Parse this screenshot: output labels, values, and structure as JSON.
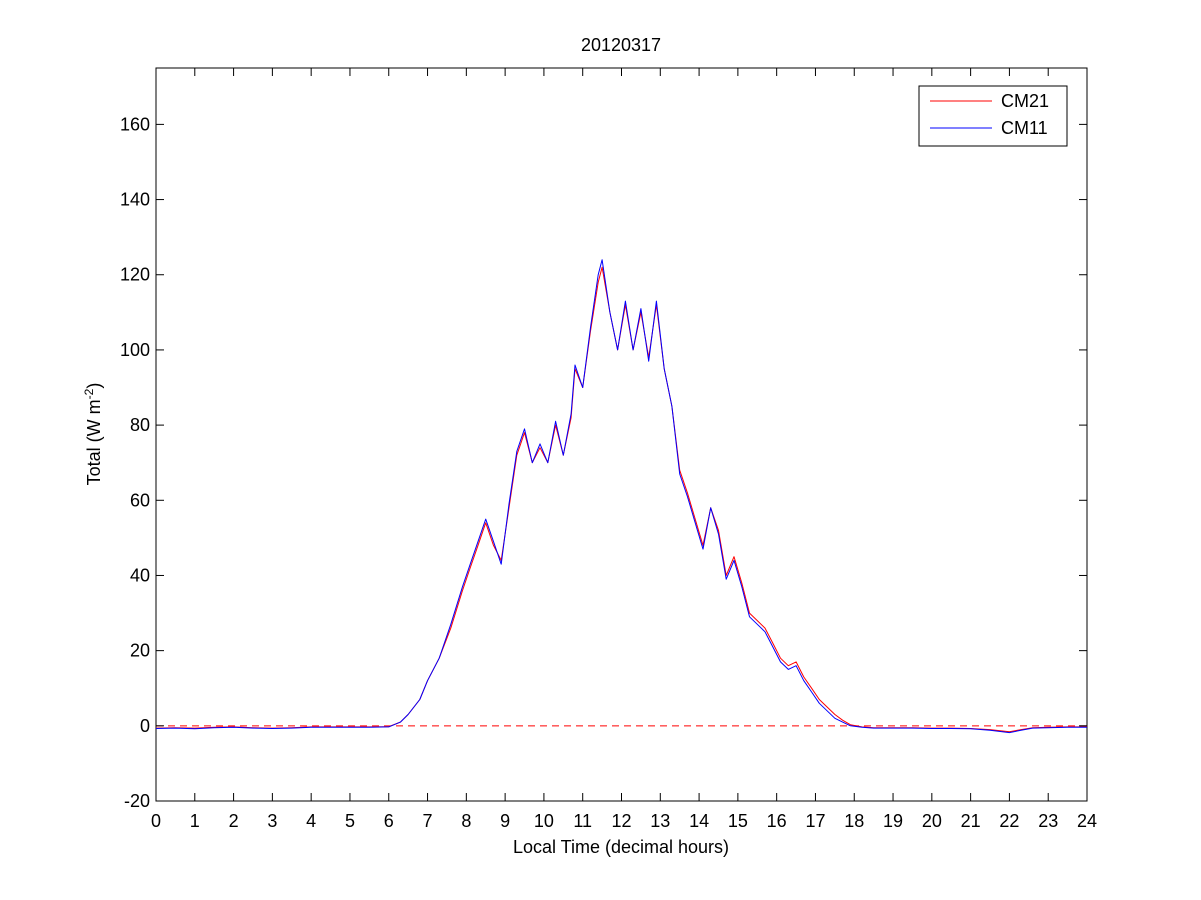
{
  "chart_data": {
    "type": "line",
    "title": "20120317",
    "xlabel": "Local Time (decimal hours)",
    "ylabel_main": "Total (W m",
    "ylabel_sup": "-2",
    "ylabel_close": ")",
    "xlim": [
      0,
      24
    ],
    "ylim": [
      -20,
      175
    ],
    "xticks": [
      0,
      1,
      2,
      3,
      4,
      5,
      6,
      7,
      8,
      9,
      10,
      11,
      12,
      13,
      14,
      15,
      16,
      17,
      18,
      19,
      20,
      21,
      22,
      23,
      24
    ],
    "xtick_labels": [
      "0",
      "1",
      "2",
      "3",
      "4",
      "5",
      "6",
      "7",
      "8",
      "9",
      "10",
      "11",
      "12",
      "13",
      "14",
      "15",
      "16",
      "17",
      "18",
      "19",
      "20",
      "21",
      "22",
      "23",
      "24"
    ],
    "yticks": [
      -20,
      0,
      20,
      40,
      60,
      80,
      100,
      120,
      140,
      160
    ],
    "ytick_labels": [
      "-20",
      "0",
      "20",
      "40",
      "60",
      "80",
      "100",
      "120",
      "140",
      "160"
    ],
    "grid": false,
    "legend_position": "top-right",
    "reference_line": {
      "y": 0,
      "style": "dashed",
      "color": "#ff0000"
    },
    "series": [
      {
        "name": "CM21",
        "color": "#ff0000",
        "x": [
          0,
          0.5,
          1,
          1.5,
          2,
          2.5,
          3,
          3.5,
          4,
          4.5,
          5,
          5.5,
          6,
          6.3,
          6.5,
          6.8,
          7,
          7.3,
          7.6,
          7.9,
          8.1,
          8.3,
          8.5,
          8.7,
          8.9,
          9.1,
          9.3,
          9.5,
          9.7,
          9.9,
          10.1,
          10.3,
          10.5,
          10.7,
          10.8,
          11,
          11.2,
          11.4,
          11.5,
          11.7,
          11.9,
          12.1,
          12.3,
          12.5,
          12.7,
          12.9,
          13.1,
          13.3,
          13.5,
          13.7,
          13.9,
          14.1,
          14.3,
          14.5,
          14.7,
          14.9,
          15.1,
          15.3,
          15.5,
          15.7,
          15.9,
          16.1,
          16.3,
          16.5,
          16.7,
          16.9,
          17.1,
          17.3,
          17.5,
          17.7,
          17.9,
          18.2,
          18.5,
          19,
          19.5,
          20,
          20.5,
          21,
          21.5,
          22,
          22.3,
          22.6,
          23,
          23.5,
          24
        ],
        "values": [
          -0.6,
          -0.5,
          -0.6,
          -0.4,
          -0.3,
          -0.5,
          -0.6,
          -0.5,
          -0.3,
          -0.3,
          -0.3,
          -0.3,
          -0.2,
          1,
          3,
          7,
          12,
          18,
          26,
          36,
          42,
          48,
          54,
          48,
          44,
          58,
          72,
          78,
          70,
          74,
          70,
          80,
          72,
          82,
          95,
          90,
          105,
          118,
          122,
          110,
          100,
          112,
          100,
          110,
          98,
          112,
          95,
          85,
          68,
          62,
          55,
          48,
          58,
          52,
          40,
          45,
          38,
          30,
          28,
          26,
          22,
          18,
          16,
          17,
          13,
          10,
          7,
          5,
          3,
          1.5,
          0.3,
          -0.3,
          -0.5,
          -0.5,
          -0.5,
          -0.6,
          -0.6,
          -0.7,
          -1,
          -1.6,
          -1,
          -0.5,
          -0.4,
          -0.3,
          -0.3
        ]
      },
      {
        "name": "CM11",
        "color": "#0000ff",
        "x": [
          0,
          0.5,
          1,
          1.5,
          2,
          2.5,
          3,
          3.5,
          4,
          4.5,
          5,
          5.5,
          6,
          6.3,
          6.5,
          6.8,
          7,
          7.3,
          7.6,
          7.9,
          8.1,
          8.3,
          8.5,
          8.7,
          8.9,
          9.1,
          9.3,
          9.5,
          9.7,
          9.9,
          10.1,
          10.3,
          10.5,
          10.7,
          10.8,
          11,
          11.2,
          11.4,
          11.5,
          11.7,
          11.9,
          12.1,
          12.3,
          12.5,
          12.7,
          12.9,
          13.1,
          13.3,
          13.5,
          13.7,
          13.9,
          14.1,
          14.3,
          14.5,
          14.7,
          14.9,
          15.1,
          15.3,
          15.5,
          15.7,
          15.9,
          16.1,
          16.3,
          16.5,
          16.7,
          16.9,
          17.1,
          17.3,
          17.5,
          17.7,
          17.9,
          18.2,
          18.5,
          19,
          19.5,
          20,
          20.5,
          21,
          21.5,
          22,
          22.3,
          22.6,
          23,
          23.5,
          24
        ],
        "values": [
          -0.7,
          -0.6,
          -0.8,
          -0.5,
          -0.4,
          -0.6,
          -0.7,
          -0.6,
          -0.4,
          -0.4,
          -0.4,
          -0.4,
          -0.3,
          1,
          3,
          7,
          12,
          18,
          27,
          37,
          43,
          49,
          55,
          49,
          43,
          59,
          73,
          79,
          70,
          75,
          70,
          81,
          72,
          83,
          96,
          90,
          106,
          120,
          124,
          110,
          100,
          113,
          100,
          111,
          97,
          113,
          95,
          85,
          67,
          61,
          54,
          47,
          58,
          51,
          39,
          44,
          37,
          29,
          27,
          25,
          21,
          17,
          15,
          16,
          12,
          9,
          6,
          4,
          2,
          1,
          0,
          -0.4,
          -0.6,
          -0.6,
          -0.6,
          -0.7,
          -0.7,
          -0.8,
          -1.2,
          -1.8,
          -1.2,
          -0.6,
          -0.5,
          -0.4,
          -0.4
        ]
      }
    ]
  }
}
